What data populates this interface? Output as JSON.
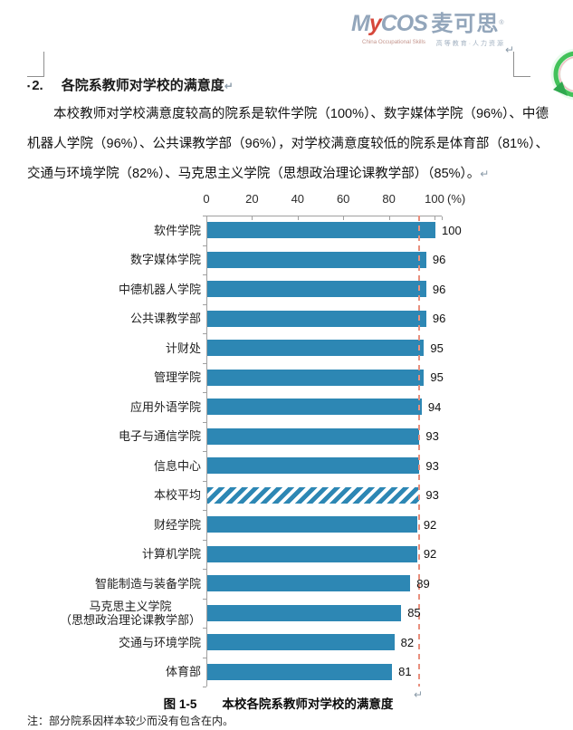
{
  "logo": {
    "brand_m": "M",
    "brand_y": "y",
    "brand_cos": "COS",
    "brand_cn": "麦可思",
    "trademark": "®",
    "tagline_en": "China Occupational Skills",
    "tagline_cn": "高等教育·人力资源"
  },
  "marks": {
    "pilcrow": "↵"
  },
  "heading": {
    "bullet": "▪",
    "number": "2.",
    "title": "各院系教师对学校的满意度"
  },
  "body_text": "本校教师对学校满意度较高的院系是软件学院（100%）、数字媒体学院（96%）、中德机器人学院（96%）、公共课教学部（96%），对学校满意度较低的院系是体育部（81%）、交通与环境学院（82%）、马克思主义学院（思想政治理论课教学部）（85%）。",
  "chart_data": {
    "type": "bar",
    "orientation": "horizontal",
    "title": "本校各院系教师对学校的满意度",
    "categories": [
      "软件学院",
      "数字媒体学院",
      "中德机器人学院",
      "公共课教学部",
      "计财处",
      "管理学院",
      "应用外语学院",
      "电子与通信学院",
      "信息中心",
      "本校平均",
      "财经学院",
      "计算机学院",
      "智能制造与装备学院",
      "马克思主义学院\n（思想政治理论课教学部）",
      "交通与环境学院",
      "体育部"
    ],
    "values": [
      100,
      96,
      96,
      96,
      95,
      95,
      94,
      93,
      93,
      93,
      92,
      92,
      89,
      85,
      82,
      81
    ],
    "xlim": [
      0,
      100
    ],
    "x_ticks": [
      0,
      20,
      40,
      60,
      80,
      100
    ],
    "x_unit": "(%)",
    "bar_color": "#2d87b4",
    "hatched_index": 9,
    "reference_line_value": 93,
    "reference_line_color": "#e8907e",
    "value_labels_shown": true,
    "grid": false,
    "legend": false
  },
  "caption": {
    "figure_label": "图 1-5",
    "text": "本校各院系教师对学校的满意度"
  },
  "footnote": "注：部分院系因样本较少而没有包含在内。"
}
